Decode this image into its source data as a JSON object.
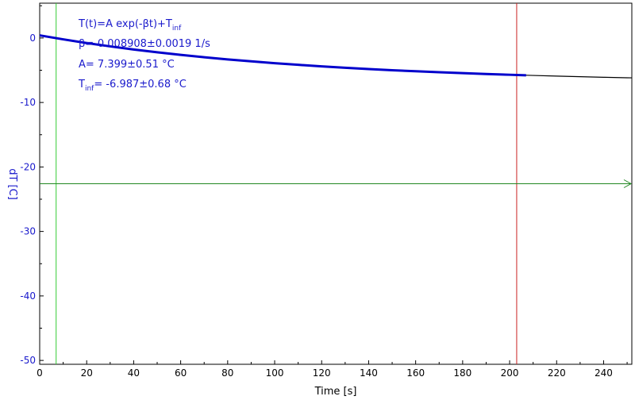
{
  "chart_data": {
    "type": "line",
    "xlabel": "Time [s]",
    "ylabel": "dT [C]",
    "xlim": [
      0,
      252
    ],
    "ylim": [
      -50.6,
      5.4
    ],
    "xticks": [
      0,
      20,
      40,
      60,
      80,
      100,
      120,
      140,
      160,
      180,
      200,
      220,
      240
    ],
    "yticks": [
      0,
      -10,
      -20,
      -30,
      -40,
      -50
    ],
    "grid": false,
    "series": [
      {
        "role": "fit",
        "color": "#0000cc",
        "x": [
          0,
          10,
          20,
          30,
          40,
          50,
          60,
          70,
          80,
          90,
          100,
          110,
          120,
          130,
          140,
          150,
          160,
          170,
          180,
          190,
          200,
          207
        ],
        "y": [
          0.41,
          -0.21,
          -0.78,
          -1.3,
          -1.78,
          -2.21,
          -2.61,
          -2.98,
          -3.32,
          -3.62,
          -3.91,
          -4.16,
          -4.4,
          -4.62,
          -4.82,
          -5.0,
          -5.16,
          -5.31,
          -5.45,
          -5.58,
          -5.7,
          -5.78
        ]
      },
      {
        "role": "measured",
        "color": "#000000",
        "x": [
          200,
          210,
          220,
          230,
          240,
          250,
          252
        ],
        "y": [
          -5.7,
          -5.81,
          -5.91,
          -6.0,
          -6.09,
          -6.17,
          -6.18
        ]
      }
    ],
    "markers": {
      "vline_start": {
        "x": 7,
        "color": "#33cc33"
      },
      "vline_end": {
        "x": 203,
        "color": "#cc2222"
      },
      "hline": {
        "y": -22.6,
        "color": "#228822"
      }
    },
    "annotations": {
      "formula": "T(t)=A exp(-βt)+T",
      "formula_sub": "inf",
      "beta": "β=-0.008908±0.0019 1/s",
      "amp": "A= 7.399±0.51 °C",
      "tinf_prefix": "T",
      "tinf_sub": "inf",
      "tinf_value": "= -6.987±0.68 °C"
    }
  }
}
